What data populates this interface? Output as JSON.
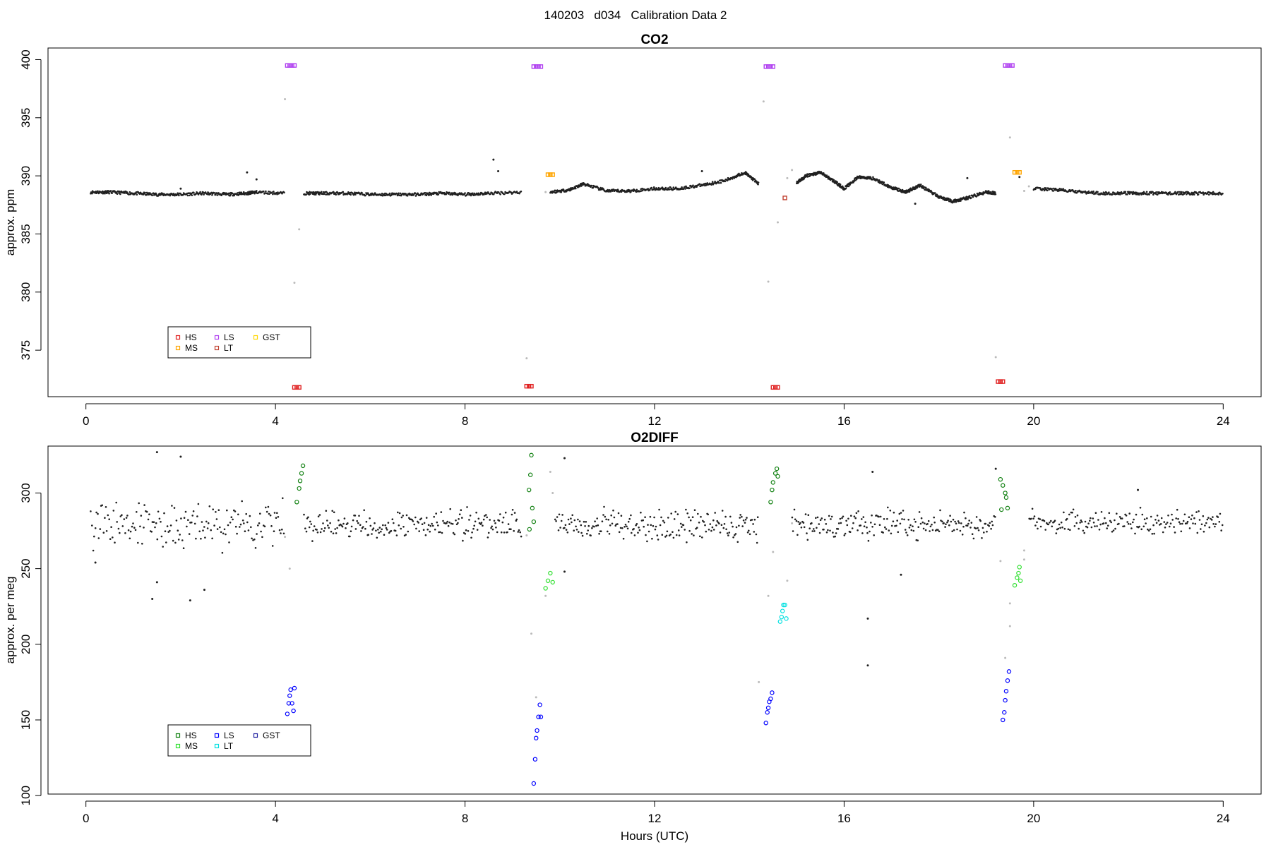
{
  "page": {
    "title": "140203   d034   Calibration Data 2"
  },
  "colors": {
    "HS": "#e02020",
    "MS": "#ffa500",
    "LS": "#b040f0",
    "LT": "#c04030",
    "GST": "#ffd700",
    "O2_HS": "#108010",
    "O2_MS": "#30e030",
    "O2_LS": "#0000ff",
    "O2_LT": "#00e0e0",
    "O2_GST": "#2020a0",
    "data": "#202020",
    "flagged": "#bbbbbb"
  },
  "chart_data": [
    {
      "type": "scatter",
      "title": "CO2",
      "xlabel": "",
      "ylabel": "approx. ppm",
      "xlim": [
        -0.8,
        24.8
      ],
      "ylim": [
        371,
        401
      ],
      "xticks": [
        0,
        4,
        8,
        12,
        16,
        20,
        24
      ],
      "yticks": [
        375,
        380,
        385,
        390,
        395,
        400
      ],
      "grid": false,
      "legend": {
        "placement": "bottom-left",
        "entries": [
          "HS",
          "MS",
          "LS",
          "LT",
          "GST"
        ]
      },
      "baseline_segments": [
        {
          "x": [
            0.1,
            0.5,
            1.0,
            1.5,
            2.0,
            2.5,
            3.0,
            3.4,
            3.6,
            4.2
          ],
          "y": [
            388.6,
            388.6,
            388.5,
            388.4,
            388.4,
            388.5,
            388.4,
            388.5,
            388.6,
            388.5
          ]
        },
        {
          "x": [
            4.6,
            5.0,
            5.5,
            6.0,
            6.5,
            7.0,
            7.5,
            8.0,
            8.5,
            9.2
          ],
          "y": [
            388.5,
            388.5,
            388.5,
            388.4,
            388.4,
            388.4,
            388.5,
            388.4,
            388.5,
            388.6
          ]
        },
        {
          "x": [
            9.8,
            10.2,
            10.5,
            11.0,
            11.5,
            12.0,
            12.5,
            13.0,
            13.5,
            13.9,
            14.2
          ],
          "y": [
            388.6,
            388.8,
            389.3,
            388.7,
            388.7,
            388.9,
            388.9,
            389.2,
            389.6,
            390.3,
            389.3
          ]
        },
        {
          "x": [
            15.0,
            15.2,
            15.5,
            15.8,
            16.0,
            16.3,
            16.6,
            17.0,
            17.3,
            17.6,
            18.0,
            18.3,
            18.6,
            19.0,
            19.2
          ],
          "y": [
            389.4,
            390.0,
            390.3,
            389.5,
            388.9,
            389.9,
            389.8,
            389.0,
            388.6,
            389.2,
            388.2,
            387.8,
            388.1,
            388.6,
            388.5
          ]
        },
        {
          "x": [
            20.0,
            20.5,
            21.0,
            21.5,
            22.0,
            22.5,
            23.0,
            23.5,
            24.0
          ],
          "y": [
            388.9,
            388.8,
            388.6,
            388.5,
            388.5,
            388.5,
            388.5,
            388.5,
            388.5
          ]
        }
      ],
      "outliers": [
        {
          "x": 2.0,
          "y": 388.9
        },
        {
          "x": 3.4,
          "y": 390.3
        },
        {
          "x": 3.6,
          "y": 389.7
        },
        {
          "x": 8.6,
          "y": 391.4
        },
        {
          "x": 8.7,
          "y": 390.4
        },
        {
          "x": 13.0,
          "y": 390.4
        },
        {
          "x": 19.7,
          "y": 389.9
        },
        {
          "x": 17.5,
          "y": 387.6
        },
        {
          "x": 18.6,
          "y": 389.8
        }
      ],
      "flagged_points": [
        {
          "x": 4.2,
          "y": 396.6
        },
        {
          "x": 4.4,
          "y": 380.8
        },
        {
          "x": 4.5,
          "y": 385.4
        },
        {
          "x": 9.3,
          "y": 374.3
        },
        {
          "x": 9.7,
          "y": 388.6
        },
        {
          "x": 14.3,
          "y": 396.4
        },
        {
          "x": 14.4,
          "y": 380.9
        },
        {
          "x": 14.6,
          "y": 386.0
        },
        {
          "x": 14.8,
          "y": 389.8
        },
        {
          "x": 14.9,
          "y": 390.5
        },
        {
          "x": 19.2,
          "y": 374.4
        },
        {
          "x": 19.5,
          "y": 393.3
        },
        {
          "x": 19.8,
          "y": 388.7
        },
        {
          "x": 19.9,
          "y": 389.1
        }
      ],
      "series": [
        {
          "name": "HS",
          "x": [
            4.4,
            4.45,
            4.5,
            9.3,
            9.35,
            9.4,
            14.5,
            14.55,
            14.6,
            19.25,
            19.3,
            19.35
          ],
          "y": [
            371.8,
            371.8,
            371.8,
            371.9,
            371.9,
            371.9,
            371.8,
            371.8,
            371.8,
            372.3,
            372.3,
            372.3
          ]
        },
        {
          "name": "MS",
          "x": [
            9.75,
            9.8,
            9.85,
            19.6,
            19.65,
            19.7
          ],
          "y": [
            390.1,
            390.1,
            390.1,
            390.3,
            390.3,
            390.3
          ]
        },
        {
          "name": "LS",
          "x": [
            4.25,
            4.3,
            4.35,
            4.4,
            9.45,
            9.5,
            9.55,
            9.6,
            14.35,
            14.4,
            14.45,
            14.5,
            19.4,
            19.45,
            19.5,
            19.55
          ],
          "y": [
            399.5,
            399.5,
            399.5,
            399.5,
            399.4,
            399.4,
            399.4,
            399.4,
            399.4,
            399.4,
            399.4,
            399.4,
            399.5,
            399.5,
            399.5,
            399.5
          ]
        },
        {
          "name": "LT",
          "x": [
            14.75
          ],
          "y": [
            388.1
          ]
        },
        {
          "name": "GST",
          "x": [],
          "y": []
        }
      ]
    },
    {
      "type": "scatter",
      "title": "O2DIFF",
      "xlabel": "Hours (UTC)",
      "ylabel": "approx. per meg",
      "xlim": [
        -0.8,
        24.8
      ],
      "ylim": [
        101,
        331
      ],
      "xticks": [
        0,
        4,
        8,
        12,
        16,
        20,
        24
      ],
      "yticks": [
        100,
        150,
        200,
        250,
        300
      ],
      "grid": false,
      "legend": {
        "placement": "bottom-left",
        "entries": [
          "HS",
          "MS",
          "LS",
          "LT",
          "GST"
        ]
      },
      "baseline_segments": [
        {
          "x": [
            0.1,
            4.2
          ],
          "center": 280,
          "spread": 14,
          "count": 170
        },
        {
          "x": [
            4.6,
            9.2
          ],
          "center": 279,
          "spread": 8,
          "count": 210
        },
        {
          "x": [
            9.9,
            14.2
          ],
          "center": 279,
          "spread": 9,
          "count": 200
        },
        {
          "x": [
            14.9,
            19.2
          ],
          "center": 279,
          "spread": 8,
          "count": 200
        },
        {
          "x": [
            19.9,
            24.0
          ],
          "center": 281,
          "spread": 7,
          "count": 180
        }
      ],
      "outliers": [
        {
          "x": 1.5,
          "y": 327
        },
        {
          "x": 2.0,
          "y": 324
        },
        {
          "x": 1.4,
          "y": 230
        },
        {
          "x": 2.2,
          "y": 229
        },
        {
          "x": 2.5,
          "y": 236
        },
        {
          "x": 1.5,
          "y": 241
        },
        {
          "x": 0.2,
          "y": 254
        },
        {
          "x": 10.1,
          "y": 323
        },
        {
          "x": 16.5,
          "y": 217
        },
        {
          "x": 16.5,
          "y": 186
        },
        {
          "x": 16.6,
          "y": 314
        },
        {
          "x": 17.2,
          "y": 246
        },
        {
          "x": 10.1,
          "y": 248
        },
        {
          "x": 19.2,
          "y": 316
        },
        {
          "x": 22.2,
          "y": 302
        }
      ],
      "flagged_points": [
        {
          "x": 4.3,
          "y": 250
        },
        {
          "x": 4.2,
          "y": 271
        },
        {
          "x": 9.4,
          "y": 207
        },
        {
          "x": 9.3,
          "y": 272
        },
        {
          "x": 9.5,
          "y": 165
        },
        {
          "x": 9.7,
          "y": 232
        },
        {
          "x": 9.8,
          "y": 314
        },
        {
          "x": 9.85,
          "y": 300
        },
        {
          "x": 14.2,
          "y": 175
        },
        {
          "x": 14.4,
          "y": 232
        },
        {
          "x": 14.5,
          "y": 261
        },
        {
          "x": 14.8,
          "y": 242
        },
        {
          "x": 14.9,
          "y": 280
        },
        {
          "x": 19.3,
          "y": 255
        },
        {
          "x": 19.4,
          "y": 191
        },
        {
          "x": 19.5,
          "y": 212
        },
        {
          "x": 19.5,
          "y": 227
        },
        {
          "x": 19.8,
          "y": 262
        },
        {
          "x": 19.8,
          "y": 256
        }
      ],
      "series": [
        {
          "name": "HS",
          "x": [
            4.45,
            4.5,
            4.52,
            4.55,
            4.58,
            9.35,
            9.38,
            9.4,
            9.42,
            9.45,
            9.36,
            14.45,
            14.5,
            14.55,
            14.58,
            14.6,
            14.48,
            19.3,
            19.35,
            19.4,
            19.42,
            19.45,
            19.32
          ],
          "y": [
            294,
            303,
            308,
            313,
            318,
            302,
            312,
            325,
            290,
            281,
            276,
            294,
            307,
            313,
            316,
            311,
            302,
            309,
            305,
            300,
            297,
            290,
            289
          ]
        },
        {
          "name": "MS",
          "x": [
            9.7,
            9.75,
            9.8,
            9.85,
            19.6,
            19.65,
            19.68,
            19.7,
            19.72
          ],
          "y": [
            237,
            242,
            247,
            241,
            239,
            244,
            247,
            251,
            242
          ]
        },
        {
          "name": "LS",
          "x": [
            4.25,
            4.28,
            4.3,
            4.32,
            4.35,
            4.38,
            4.4,
            9.45,
            9.48,
            9.5,
            9.52,
            9.55,
            9.58,
            9.6,
            14.35,
            14.38,
            14.4,
            14.42,
            14.45,
            14.48,
            19.35,
            19.38,
            19.4,
            19.42,
            19.45,
            19.48
          ],
          "y": [
            154,
            161,
            166,
            170,
            161,
            156,
            171,
            108,
            124,
            138,
            143,
            152,
            160,
            152,
            148,
            155,
            158,
            162,
            164,
            168,
            150,
            155,
            163,
            169,
            176,
            182
          ]
        },
        {
          "name": "LT",
          "x": [
            14.65,
            14.68,
            14.7,
            14.72,
            14.75,
            14.78
          ],
          "y": [
            215,
            218,
            222,
            226,
            226,
            217
          ]
        },
        {
          "name": "GST",
          "x": [],
          "y": []
        }
      ]
    }
  ]
}
